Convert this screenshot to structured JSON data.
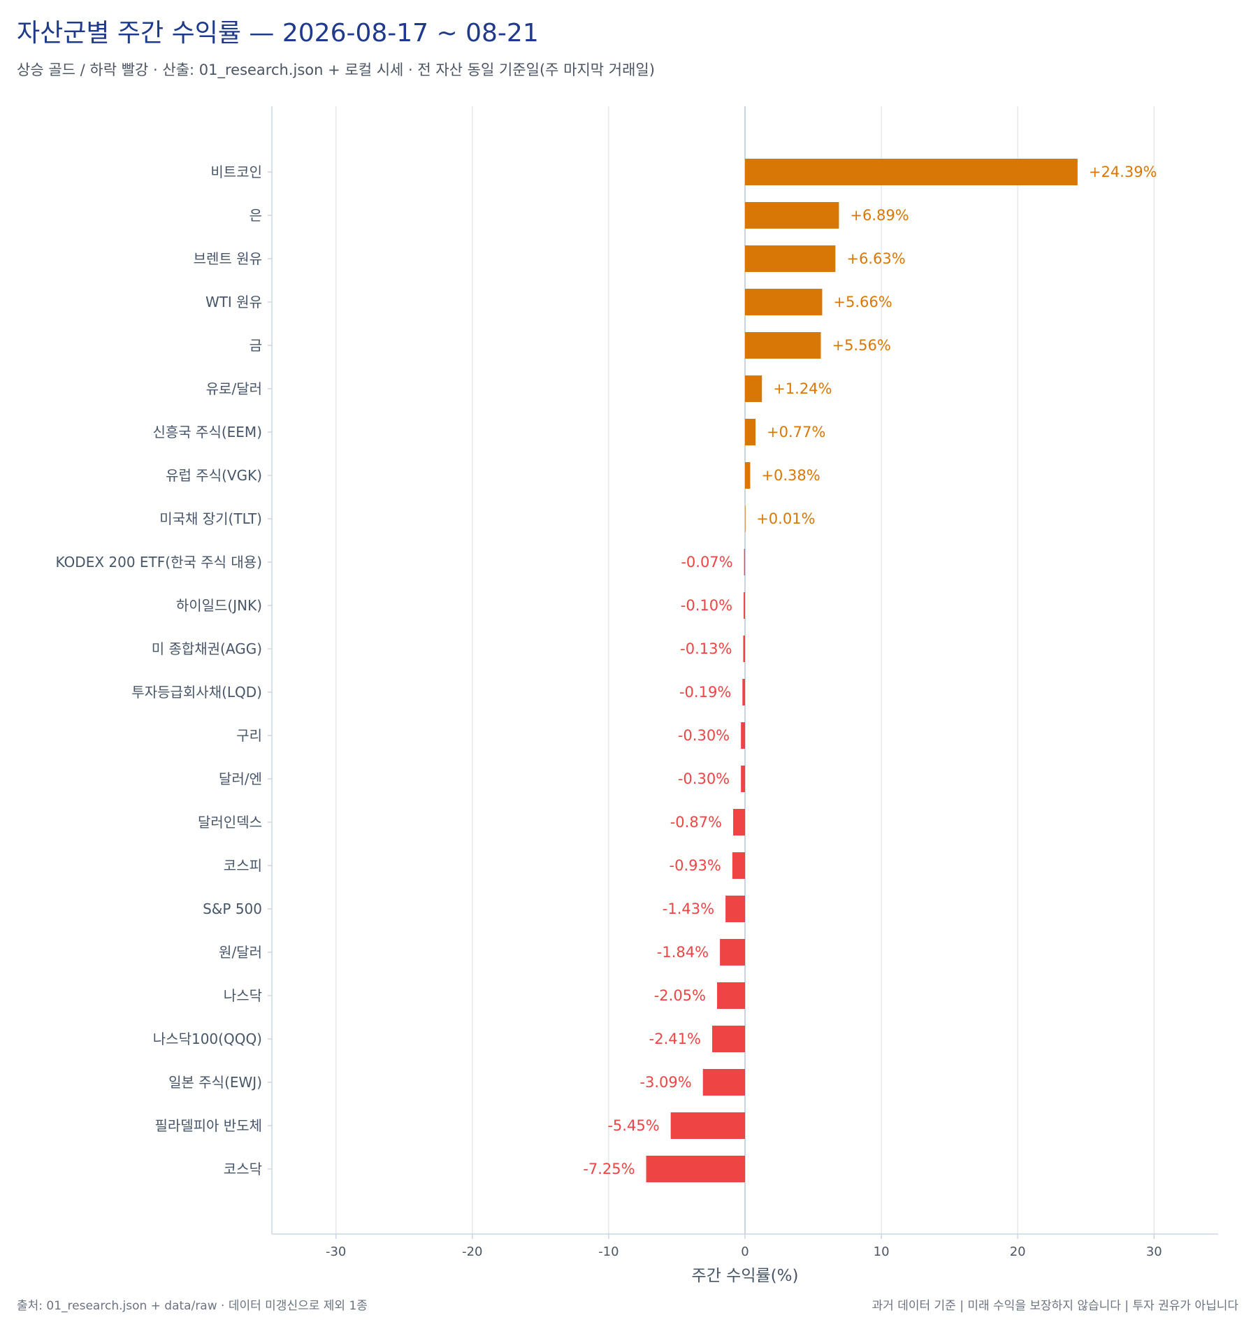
{
  "header": {
    "title": "자산군별 주간 수익률 — 2026-08-17 ~ 08-21",
    "subtitle": "상승 골드 / 하락 빨강 · 산출: 01_research.json + 로컬 시세 · 전 자산 동일 기준일(주 마지막 거래일)"
  },
  "footer": {
    "source": "출처: 01_research.json + data/raw · 데이터 미갱신으로 제외 1종",
    "disclaimer": "과거 데이터 기준 | 미래 수익을 보장하지 않습니다 | 투자 권유가 아닙니다"
  },
  "colors": {
    "up": "#d97706",
    "down": "#ef4444",
    "grid": "#e5e7eb",
    "axis": "#cbd5e1",
    "label": "#4b5563",
    "category_label": "#475569"
  },
  "chart_data": {
    "type": "bar",
    "orientation": "horizontal",
    "xlabel": "주간 수익률(%)",
    "xlim": [
      -34.7,
      34.7
    ],
    "xticks": [
      -30,
      -20,
      -10,
      0,
      10,
      20,
      30
    ],
    "grid": true,
    "categories": [
      "비트코인",
      "은",
      "브렌트 원유",
      "WTI 원유",
      "금",
      "유로/달러",
      "신흥국 주식(EEM)",
      "유럽 주식(VGK)",
      "미국채 장기(TLT)",
      "KODEX 200 ETF(한국 주식 대용)",
      "하이일드(JNK)",
      "미 종합채권(AGG)",
      "투자등급회사채(LQD)",
      "구리",
      "달러/엔",
      "달러인덱스",
      "코스피",
      "S&P 500",
      "원/달러",
      "나스닥",
      "나스닥100(QQQ)",
      "일본 주식(EWJ)",
      "필라델피아 반도체",
      "코스닥"
    ],
    "values": [
      24.39,
      6.89,
      6.63,
      5.66,
      5.56,
      1.24,
      0.77,
      0.38,
      0.01,
      -0.07,
      -0.1,
      -0.13,
      -0.19,
      -0.3,
      -0.3,
      -0.87,
      -0.93,
      -1.43,
      -1.84,
      -2.05,
      -2.41,
      -3.09,
      -5.45,
      -7.25
    ],
    "labels": [
      "+24.39%",
      "+6.89%",
      "+6.63%",
      "+5.66%",
      "+5.56%",
      "+1.24%",
      "+0.77%",
      "+0.38%",
      "+0.01%",
      "-0.07%",
      "-0.10%",
      "-0.13%",
      "-0.19%",
      "-0.30%",
      "-0.30%",
      "-0.87%",
      "-0.93%",
      "-1.43%",
      "-1.84%",
      "-2.05%",
      "-2.41%",
      "-3.09%",
      "-5.45%",
      "-7.25%"
    ]
  }
}
